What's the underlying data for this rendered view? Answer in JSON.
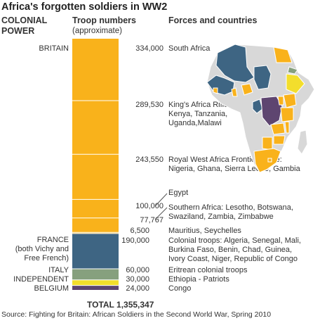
{
  "title": "Africa's forgotten soldiers in WW2",
  "headers": {
    "power": [
      "COLONIAL",
      "POWER"
    ],
    "troops": "Troop numbers",
    "troops_sub": "(approximate)",
    "forces": "Forces and countries"
  },
  "powers": {
    "britain": "BRITAIN",
    "france": "FRANCE",
    "france_sub1": "(both Vichy and",
    "france_sub2": "Free French)",
    "italy": "ITALY",
    "independent": "INDEPENDENT",
    "belgium": "BELGIUM"
  },
  "colors": {
    "britain": "#F9B21B",
    "france": "#3E6583",
    "italy": "#86A07E",
    "independent": "#F3DE2C",
    "belgium": "#5E4570",
    "map_grey": "#D8D8D8"
  },
  "chart_data": {
    "type": "bar",
    "orientation": "stacked-vertical",
    "segments": [
      {
        "power": "BRITAIN",
        "value": 334000,
        "label": "334,000",
        "desc": [
          "South Africa"
        ],
        "color": "britain"
      },
      {
        "power": "BRITAIN",
        "value": 289530,
        "label": "289,530",
        "desc": [
          "King's Africa Rifles:",
          "Kenya, Tanzania,",
          "Uganda,Malawi"
        ],
        "color": "britain"
      },
      {
        "power": "BRITAIN",
        "value": 243550,
        "label": "243,550",
        "desc": [
          "Royal West Africa Frontier Force:",
          "Nigeria, Ghana, Sierra Leone, Gambia"
        ],
        "color": "britain"
      },
      {
        "power": "BRITAIN",
        "value": 100000,
        "label": "100,000",
        "desc": [
          "Egypt"
        ],
        "color": "britain"
      },
      {
        "power": "BRITAIN",
        "value": 77767,
        "label": "77,767",
        "desc": [
          "Southern Africa: Lesotho, Botswana,",
          "Swaziland, Zambia, Zimbabwe"
        ],
        "color": "britain"
      },
      {
        "power": "BRITAIN",
        "value": 6500,
        "label": "6,500",
        "desc": [
          "Mauritius, Seychelles"
        ],
        "color": "britain"
      },
      {
        "power": "FRANCE",
        "value": 190000,
        "label": "190,000",
        "desc": [
          "Colonial troops: Algeria, Senegal, Mali,",
          "Burkina Faso, Benin, Chad, Guinea,",
          "Ivory Coast, Niger, Republic of Congo"
        ],
        "color": "france"
      },
      {
        "power": "ITALY",
        "value": 60000,
        "label": "60,000",
        "desc": [
          "Eritrean colonial troops"
        ],
        "color": "italy"
      },
      {
        "power": "INDEPENDENT",
        "value": 30000,
        "label": "30,000",
        "desc": [
          "Ethiopia - Patriots"
        ],
        "color": "independent"
      },
      {
        "power": "BELGIUM",
        "value": 24000,
        "label": "24,000",
        "desc": [
          "Congo"
        ],
        "color": "belgium"
      }
    ],
    "total_label": "TOTAL",
    "total_value": "1,355,347"
  },
  "source": "Source: Fighting for Britain: African Soldiers in the Second World War, Spring 2010"
}
